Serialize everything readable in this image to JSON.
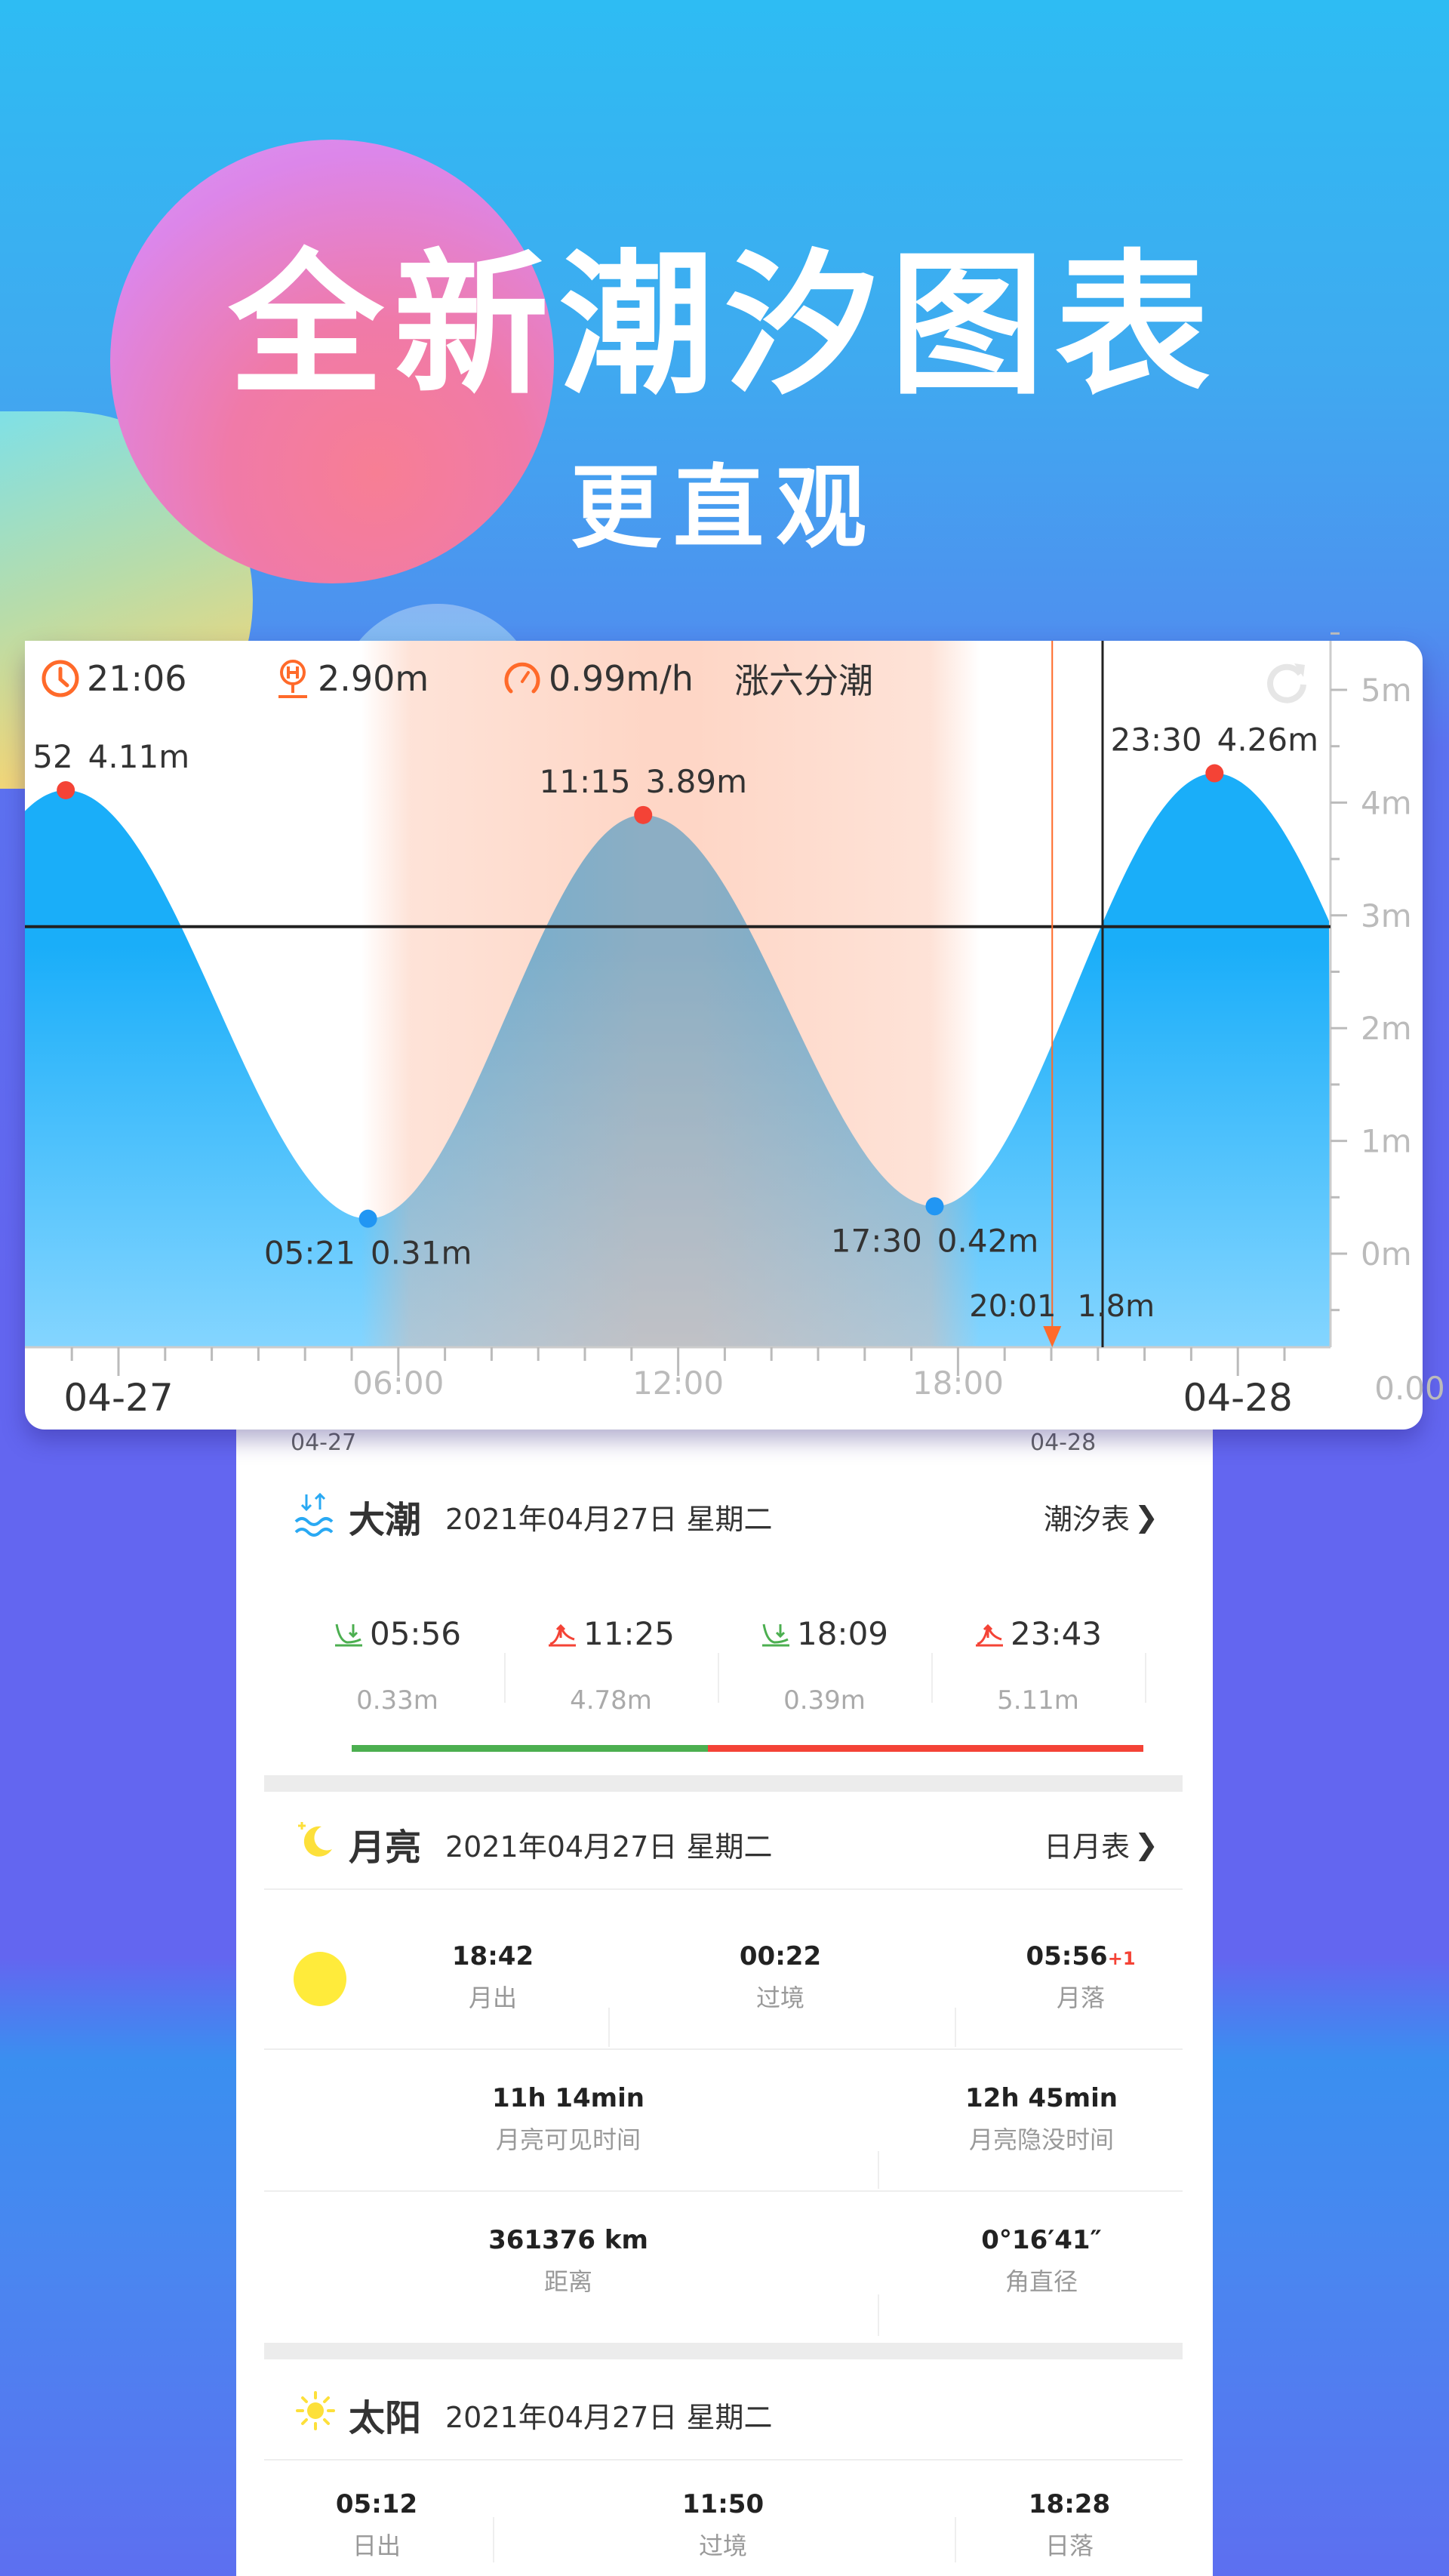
{
  "hero": {
    "title": "全新潮汐图表",
    "subtitle": "更直观"
  },
  "colors": {
    "accent_orange": "#ff6a2a",
    "high_dot": "#f44336",
    "low_dot": "#2196f3",
    "water_top": "#1aaef9",
    "water_bottom": "#84d5ff",
    "flood_green": "#4caf50",
    "ebb_red": "#f44336",
    "moon_yellow": "#ffeb3b"
  },
  "chart_info": {
    "time": "21:06",
    "time_icon": "clock-icon",
    "height": "2.90m",
    "height_icon": "tide-gauge-icon",
    "speed": "0.99m/h",
    "speed_icon": "speedometer-icon",
    "phase": "涨六分潮",
    "refresh_icon": "refresh-icon"
  },
  "chart_data": {
    "type": "area",
    "xlabel": "",
    "ylabel": "",
    "x_ticks": [
      {
        "hour": 0,
        "label": "04-27"
      },
      {
        "hour": 6,
        "label": "06:00"
      },
      {
        "hour": 12,
        "label": "12:00"
      },
      {
        "hour": 18,
        "label": "18:00"
      },
      {
        "hour": 24,
        "label": "04-28"
      }
    ],
    "y_ticks": [
      "0m",
      "1m",
      "2m",
      "3m",
      "4m",
      "5m"
    ],
    "y_tick_values": [
      0,
      1,
      2,
      3,
      4,
      5
    ],
    "ylim": [
      -0.83,
      5.6
    ],
    "xlim_hours": [
      -2,
      26
    ],
    "corner_label": "0.00",
    "extremes": [
      {
        "hour": -1.13,
        "time": "52",
        "height": 4.11,
        "label": "4.11m",
        "type": "high"
      },
      {
        "hour": 5.35,
        "time": "05:21",
        "height": 0.31,
        "label": "0.31m",
        "type": "low"
      },
      {
        "hour": 11.25,
        "time": "11:15",
        "height": 3.89,
        "label": "3.89m",
        "type": "high"
      },
      {
        "hour": 17.5,
        "time": "17:30",
        "height": 0.42,
        "label": "0.42m",
        "type": "low"
      },
      {
        "hour": 23.5,
        "time": "23:30",
        "height": 4.26,
        "label": "4.26m",
        "type": "high"
      }
    ],
    "daylight_hours": [
      5.2,
      18.47
    ],
    "current": {
      "hour": 21.1,
      "height": 2.9
    },
    "marker": {
      "hour": 20.02,
      "time": "20:01",
      "height": "1.8m"
    }
  },
  "ghost_axis": [
    "04-27",
    "04-28"
  ],
  "tide": {
    "icon": "tide-waves-icon",
    "title": "大潮",
    "date": "2021年04月27日 星期二",
    "link": "潮汐表",
    "events": [
      {
        "type": "low",
        "icon": "ebb-icon",
        "time": "05:56",
        "height": "0.33m"
      },
      {
        "type": "high",
        "icon": "flood-icon",
        "time": "11:25",
        "height": "4.78m"
      },
      {
        "type": "low",
        "icon": "ebb-icon",
        "time": "18:09",
        "height": "0.39m"
      },
      {
        "type": "high",
        "icon": "flood-icon",
        "time": "23:43",
        "height": "5.11m"
      }
    ],
    "progress": 0.45
  },
  "moon": {
    "icon": "moon-stars-icon",
    "title": "月亮",
    "date": "2021年04月27日 星期二",
    "link": "日月表",
    "phase_icon": "moon-phase-full-icon",
    "rise": {
      "value": "18:42",
      "label": "月出"
    },
    "transit": {
      "value": "00:22",
      "label": "过境"
    },
    "set": {
      "value": "05:56",
      "suffix": "+1",
      "label": "月落"
    },
    "visible": {
      "value": "11h 14min",
      "label": "月亮可见时间"
    },
    "hidden": {
      "value": "12h 45min",
      "label": "月亮隐没时间"
    },
    "distance": {
      "value": "361376 km",
      "label": "距离"
    },
    "diameter": {
      "value": "0°16′41″",
      "label": "角直径"
    }
  },
  "sun": {
    "icon": "sun-icon",
    "title": "太阳",
    "date": "2021年04月27日 星期二",
    "rise": {
      "value": "05:12",
      "label": "日出"
    },
    "transit": {
      "value": "11:50",
      "label": "过境"
    },
    "set": {
      "value": "18:28",
      "label": "日落"
    }
  }
}
